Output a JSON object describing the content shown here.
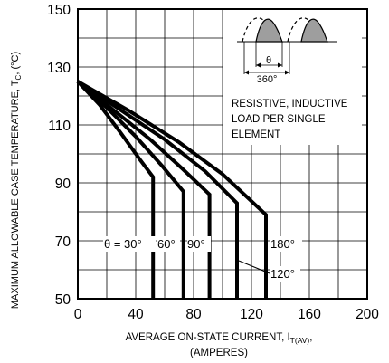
{
  "chart_data": {
    "type": "line",
    "ylabel_main": "MAXIMUM ALLOWABLE CASE TEMPERATURE, T",
    "ylabel_sub": "C",
    "ylabel_unit": ", (°C)",
    "xlabel_main": "AVERAGE ON-STATE  CURRENT, I",
    "xlabel_sub": "T(AV)",
    "xlabel_tail": ",",
    "xlabel_line2": "(AMPERES)",
    "xlim": [
      0,
      200
    ],
    "ylim": [
      50,
      150
    ],
    "x_ticks": [
      "0",
      "40",
      "80",
      "120",
      "160",
      "200"
    ],
    "y_ticks": [
      "50",
      "70",
      "90",
      "110",
      "130",
      "150"
    ],
    "grid": true,
    "annotation": {
      "line1": "RESISTIVE, INDUCTIVE",
      "line2": "LOAD PER SINGLE",
      "line3": "ELEMENT",
      "theta": "θ",
      "period": "360°"
    },
    "curve_labels": {
      "s30": "θ = 30°",
      "s60": "60°",
      "s90": "90°",
      "s120": "120°",
      "s180": "180°"
    },
    "series": [
      {
        "name": "30°",
        "points": [
          [
            0,
            125
          ],
          [
            15,
            117
          ],
          [
            30,
            107
          ],
          [
            43,
            98
          ],
          [
            52,
            92
          ],
          [
            52,
            50
          ]
        ]
      },
      {
        "name": "60°",
        "points": [
          [
            0,
            125
          ],
          [
            20,
            116
          ],
          [
            40,
            106
          ],
          [
            58,
            96
          ],
          [
            73,
            87
          ],
          [
            73,
            50
          ]
        ]
      },
      {
        "name": "90°",
        "points": [
          [
            0,
            125
          ],
          [
            25,
            115
          ],
          [
            50,
            105
          ],
          [
            72,
            95
          ],
          [
            91,
            86
          ],
          [
            91,
            50
          ]
        ]
      },
      {
        "name": "120°",
        "points": [
          [
            0,
            125
          ],
          [
            30,
            115
          ],
          [
            60,
            105
          ],
          [
            88,
            94
          ],
          [
            110,
            83
          ],
          [
            110,
            50
          ]
        ]
      },
      {
        "name": "180°",
        "points": [
          [
            0,
            125
          ],
          [
            35,
            115
          ],
          [
            70,
            104
          ],
          [
            100,
            93
          ],
          [
            130,
            79
          ],
          [
            130,
            50
          ]
        ]
      }
    ]
  }
}
